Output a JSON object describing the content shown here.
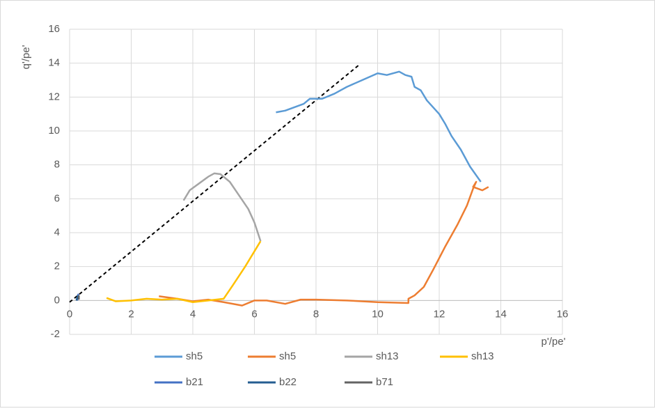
{
  "chart_data": {
    "type": "line",
    "xlabel": "p'/pe'",
    "ylabel": "q'/pe'",
    "xlim": [
      0,
      16
    ],
    "ylim": [
      -2,
      16
    ],
    "xticks": [
      0,
      2,
      4,
      6,
      8,
      10,
      12,
      14,
      16
    ],
    "yticks": [
      -2,
      0,
      2,
      4,
      6,
      8,
      10,
      12,
      14,
      16
    ],
    "grid": true,
    "legend": "bottom",
    "series": [
      {
        "name": "sh5",
        "color": "#5b9bd5",
        "x": [
          6.7,
          7.0,
          7.3,
          7.6,
          7.8,
          8.2,
          8.6,
          9.0,
          9.5,
          10.0,
          10.3,
          10.7,
          10.9,
          11.1,
          11.2,
          11.4,
          11.6,
          11.8,
          12.0,
          12.2,
          12.4,
          12.7,
          13.0,
          13.35
        ],
        "y": [
          11.1,
          11.2,
          11.4,
          11.6,
          11.9,
          11.9,
          12.2,
          12.6,
          13.0,
          13.4,
          13.3,
          13.5,
          13.3,
          13.2,
          12.6,
          12.4,
          11.8,
          11.4,
          11.0,
          10.4,
          9.7,
          8.9,
          7.9,
          7.0
        ]
      },
      {
        "name": "sh5",
        "color": "#ed7d31",
        "x": [
          2.9,
          3.5,
          4.0,
          4.5,
          5.0,
          5.6,
          6.0,
          6.4,
          7.0,
          7.5,
          8.0,
          9.0,
          10.0,
          11.0,
          11.0,
          11.2,
          11.5,
          11.8,
          12.2,
          12.6,
          12.9,
          13.1,
          13.2,
          13.1,
          13.4,
          13.6
        ],
        "y": [
          0.25,
          0.1,
          -0.05,
          0.05,
          -0.1,
          -0.3,
          0,
          0,
          -0.2,
          0.05,
          0.05,
          0,
          -0.1,
          -0.15,
          0.1,
          0.3,
          0.8,
          1.8,
          3.2,
          4.5,
          5.6,
          6.6,
          7.0,
          6.7,
          6.5,
          6.7
        ]
      },
      {
        "name": "sh13",
        "color": "#a5a5a5",
        "x": [
          3.7,
          3.9,
          4.2,
          4.5,
          4.7,
          4.9,
          5.2,
          5.5,
          5.8,
          6.0,
          6.2
        ],
        "y": [
          5.9,
          6.5,
          6.9,
          7.3,
          7.5,
          7.45,
          7.0,
          6.2,
          5.4,
          4.6,
          3.5
        ]
      },
      {
        "name": "sh13",
        "color": "#ffc000",
        "x": [
          1.2,
          1.5,
          2.0,
          2.5,
          3.0,
          3.5,
          4.0,
          4.5,
          5.0,
          5.3,
          5.7,
          6.2
        ],
        "y": [
          0.15,
          -0.05,
          0,
          0.1,
          0.05,
          0.1,
          -0.1,
          0,
          0.1,
          0.9,
          2.0,
          3.5
        ]
      },
      {
        "name": "b21",
        "color": "#4472c4",
        "x": [
          0.25,
          0.28,
          0.3
        ],
        "y": [
          0,
          0.35,
          0.1
        ]
      },
      {
        "name": "b22",
        "color": "#255e91",
        "x": [
          0.22,
          0.27
        ],
        "y": [
          0,
          0.3
        ]
      },
      {
        "name": "b71",
        "color": "#636363",
        "x": [
          0.3,
          0.3
        ],
        "y": [
          0.05,
          0.3
        ]
      }
    ],
    "dashed_line": {
      "color": "#000000",
      "x": [
        0,
        9.4
      ],
      "y": [
        -0.1,
        13.9
      ]
    }
  }
}
